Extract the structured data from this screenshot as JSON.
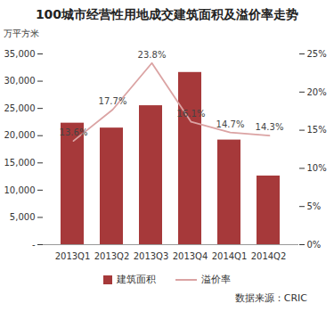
{
  "chart_data": {
    "type": "bar",
    "title": "100城市经营性用地成交建筑面积及溢价率走势",
    "ylabel": "万平方米",
    "source": "数据来源：CRIC",
    "categories": [
      "2013Q1",
      "2013Q2",
      "2013Q3",
      "2013Q4",
      "2014Q1",
      "2014Q2"
    ],
    "series": [
      {
        "name": "建筑面积",
        "type": "bar",
        "color": "#a6393a",
        "values": [
          22300,
          21400,
          25500,
          31600,
          19200,
          12600
        ]
      },
      {
        "name": "溢价率",
        "type": "line",
        "axis": "y2",
        "color": "#dba3a3",
        "values": [
          13.6,
          17.7,
          23.8,
          16.1,
          14.7,
          14.3
        ],
        "value_labels": [
          "13.6%",
          "17.7%",
          "23.8%",
          "16.1%",
          "14.7%",
          "14.3%"
        ]
      }
    ],
    "ylim": [
      0,
      35000
    ],
    "yticks": [
      {
        "value": 0,
        "label": "-"
      },
      {
        "value": 5000,
        "label": "5,000"
      },
      {
        "value": 10000,
        "label": "10,000"
      },
      {
        "value": 15000,
        "label": "15,000"
      },
      {
        "value": 20000,
        "label": "20,000"
      },
      {
        "value": 25000,
        "label": "25,000"
      },
      {
        "value": 30000,
        "label": "30,000"
      },
      {
        "value": 35000,
        "label": "35,000"
      }
    ],
    "y2lim": [
      0,
      25
    ],
    "y2ticks": [
      {
        "value": 0,
        "label": "0%"
      },
      {
        "value": 5,
        "label": "5%"
      },
      {
        "value": 10,
        "label": "10%"
      },
      {
        "value": 15,
        "label": "15%"
      },
      {
        "value": 20,
        "label": "20%"
      },
      {
        "value": 25,
        "label": "25%"
      }
    ],
    "data_labels": true,
    "grid": false,
    "legend": "bottom"
  }
}
